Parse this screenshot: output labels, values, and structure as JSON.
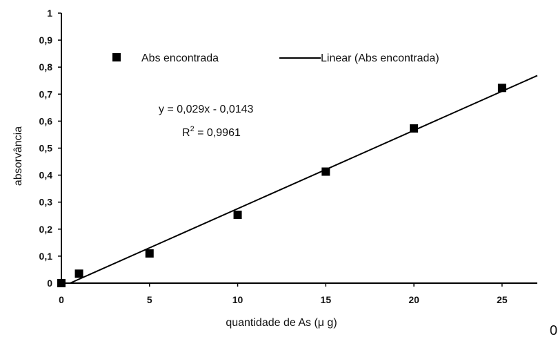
{
  "chart_data": {
    "type": "scatter",
    "title": "",
    "xlabel": "quantidade de As (μ g)",
    "ylabel": "absorvância",
    "xlim": [
      0,
      27
    ],
    "ylim": [
      0,
      1
    ],
    "x_ticks": [
      "0",
      "5",
      "10",
      "15",
      "20",
      "25"
    ],
    "y_ticks": [
      "0",
      "0,1",
      "0,2",
      "0,3",
      "0,4",
      "0,5",
      "0,6",
      "0,7",
      "0,8",
      "0,9",
      "1"
    ],
    "grid": false,
    "legend_position": "top",
    "series": [
      {
        "name": "Abs encontrada",
        "kind": "points",
        "marker": "square",
        "x": [
          0,
          1,
          5,
          10,
          15,
          20,
          25
        ],
        "y": [
          0.0,
          0.035,
          0.11,
          0.253,
          0.413,
          0.573,
          0.723
        ]
      },
      {
        "name": "Linear (Abs encontrada)",
        "kind": "trendline",
        "slope": 0.029,
        "intercept": -0.0143
      }
    ],
    "annotations": {
      "equation": "y = 0,029x - 0,0143",
      "r2_text": "R",
      "r2_sup": "2",
      "r2_value": " = 0,9961"
    },
    "color": "#000000"
  },
  "corner_text": "0"
}
